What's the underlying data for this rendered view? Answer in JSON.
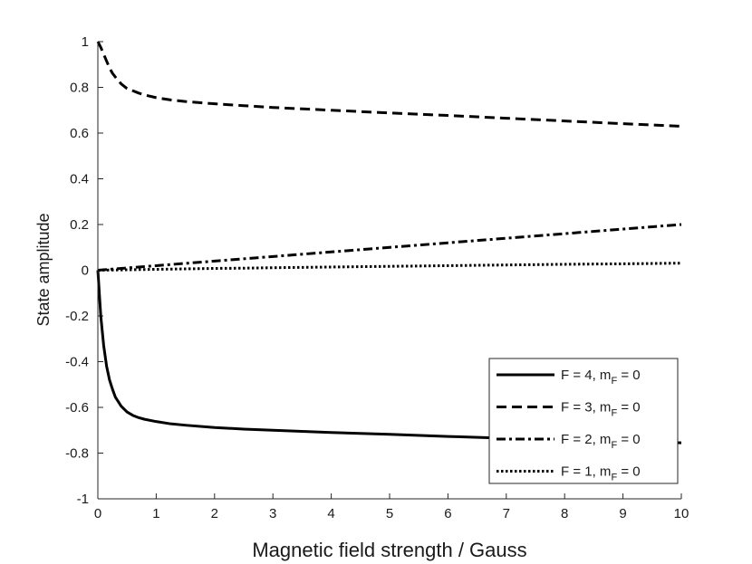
{
  "chart_data": {
    "type": "line",
    "title": "",
    "xlabel": "Magnetic field strength / Gauss",
    "ylabel": "State amplitude",
    "xlim": [
      0,
      10
    ],
    "ylim": [
      -1,
      1
    ],
    "xticks": [
      0,
      1,
      2,
      3,
      4,
      5,
      6,
      7,
      8,
      9,
      10
    ],
    "yticks": [
      -1,
      -0.8,
      -0.6,
      -0.4,
      -0.2,
      0,
      0.2,
      0.4,
      0.6,
      0.8,
      1
    ],
    "xtick_labels": [
      "0",
      "1",
      "2",
      "3",
      "4",
      "5",
      "6",
      "7",
      "8",
      "9",
      "10"
    ],
    "ytick_labels": [
      "-1",
      "-0.8",
      "-0.6",
      "-0.4",
      "-0.2",
      "0",
      "0.2",
      "0.4",
      "0.6",
      "0.8",
      "1"
    ],
    "grid": false,
    "legend_position": "bottom-right",
    "x": [
      0,
      0.05,
      0.1,
      0.15,
      0.2,
      0.25,
      0.3,
      0.4,
      0.5,
      0.6,
      0.7,
      0.8,
      1.0,
      1.25,
      1.5,
      2.0,
      2.5,
      3.0,
      4.0,
      5.0,
      6.0,
      7.0,
      8.0,
      9.0,
      10.0
    ],
    "series": [
      {
        "legend_main": "F = 4, m",
        "legend_sub": "F",
        "legend_tail": " = 0",
        "dash": "solid",
        "values": [
          0,
          -0.2,
          -0.33,
          -0.42,
          -0.48,
          -0.52,
          -0.555,
          -0.595,
          -0.62,
          -0.635,
          -0.645,
          -0.652,
          -0.662,
          -0.672,
          -0.678,
          -0.688,
          -0.695,
          -0.7,
          -0.71,
          -0.718,
          -0.727,
          -0.735,
          -0.742,
          -0.748,
          -0.755
        ]
      },
      {
        "legend_main": "F = 3, m",
        "legend_sub": "F",
        "legend_tail": " = 0",
        "dash": "dashed",
        "values": [
          1,
          0.975,
          0.945,
          0.915,
          0.885,
          0.862,
          0.845,
          0.815,
          0.795,
          0.785,
          0.775,
          0.767,
          0.755,
          0.745,
          0.738,
          0.728,
          0.72,
          0.712,
          0.7,
          0.688,
          0.677,
          0.665,
          0.653,
          0.641,
          0.63
        ]
      },
      {
        "legend_main": "F = 2, m",
        "legend_sub": "F",
        "legend_tail": " = 0",
        "dash": "dashdot",
        "values": [
          0,
          0.001,
          0.002,
          0.003,
          0.004,
          0.005,
          0.006,
          0.008,
          0.01,
          0.012,
          0.014,
          0.016,
          0.02,
          0.025,
          0.03,
          0.04,
          0.05,
          0.06,
          0.08,
          0.1,
          0.12,
          0.14,
          0.16,
          0.18,
          0.2
        ]
      },
      {
        "legend_main": "F = 1, m",
        "legend_sub": "F",
        "legend_tail": " = 0",
        "dash": "dotted",
        "values": [
          0,
          0.0002,
          0.0004,
          0.0006,
          0.0008,
          0.001,
          0.0012,
          0.0016,
          0.002,
          0.0024,
          0.0028,
          0.0032,
          0.004,
          0.005,
          0.006,
          0.008,
          0.009,
          0.011,
          0.014,
          0.017,
          0.02,
          0.023,
          0.026,
          0.028,
          0.031
        ]
      }
    ]
  }
}
